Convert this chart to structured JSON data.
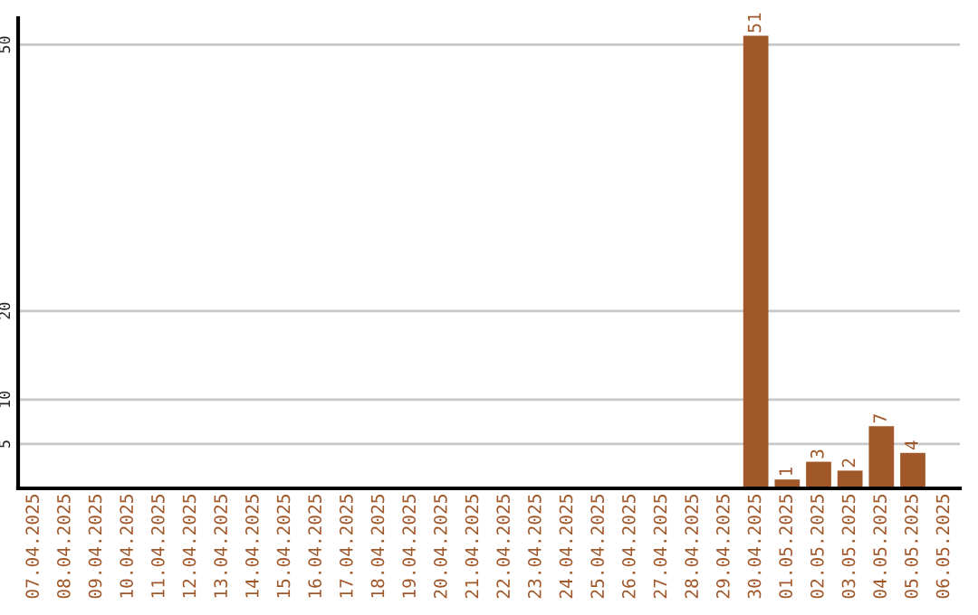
{
  "chart_data": {
    "type": "bar",
    "categories": [
      "07.04.2025",
      "08.04.2025",
      "09.04.2025",
      "10.04.2025",
      "11.04.2025",
      "12.04.2025",
      "13.04.2025",
      "14.04.2025",
      "15.04.2025",
      "16.04.2025",
      "17.04.2025",
      "18.04.2025",
      "19.04.2025",
      "20.04.2025",
      "21.04.2025",
      "22.04.2025",
      "23.04.2025",
      "24.04.2025",
      "25.04.2025",
      "26.04.2025",
      "27.04.2025",
      "28.04.2025",
      "29.04.2025",
      "30.04.2025",
      "01.05.2025",
      "02.05.2025",
      "03.05.2025",
      "04.05.2025",
      "05.05.2025",
      "06.05.2025"
    ],
    "values": [
      0,
      0,
      0,
      0,
      0,
      0,
      0,
      0,
      0,
      0,
      0,
      0,
      0,
      0,
      0,
      0,
      0,
      0,
      0,
      0,
      0,
      0,
      0,
      51,
      1,
      3,
      2,
      7,
      4,
      0
    ],
    "value_labels": [
      null,
      null,
      null,
      null,
      null,
      null,
      null,
      null,
      null,
      null,
      null,
      null,
      null,
      null,
      null,
      null,
      null,
      null,
      null,
      null,
      null,
      null,
      null,
      "51",
      "1",
      "3",
      "2",
      "7",
      "4",
      null
    ],
    "color": "#a0572a",
    "ylim": [
      0,
      53
    ],
    "yticks": [
      5,
      10,
      20,
      50
    ],
    "grid": "y"
  }
}
